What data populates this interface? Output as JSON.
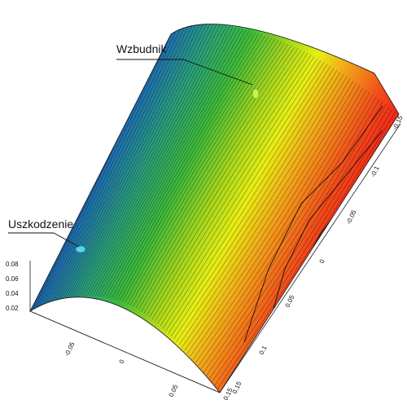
{
  "annotations": {
    "exciter": "Wzbudnik",
    "damage": "Uszkodzenie"
  },
  "axes": {
    "z_ticks": [
      "0.08",
      "0.06",
      "0.04",
      "0.02"
    ],
    "x_ticks": [
      "-0.05",
      "0",
      "0.05",
      "0.15"
    ],
    "y_ticks": [
      "-0.15",
      "-0.1",
      "-0.05",
      "0",
      "0.05",
      "0.1",
      "0.15"
    ]
  },
  "colors": {
    "colormap": [
      "#0d1d8c",
      "#1e6fae",
      "#2aa17a",
      "#3dbb3a",
      "#9fd41e",
      "#e8ee14",
      "#f2a11a",
      "#f24b1a",
      "#f01414"
    ],
    "contour": "#111111",
    "background": "#ffffff"
  }
}
